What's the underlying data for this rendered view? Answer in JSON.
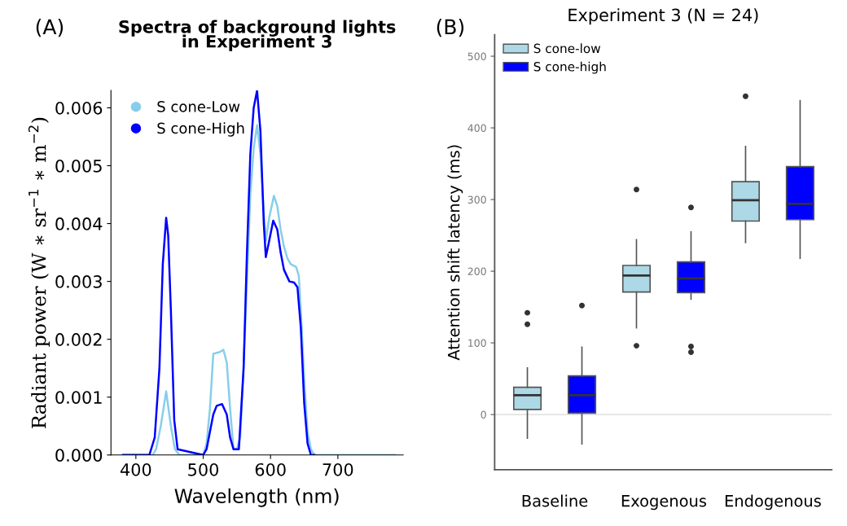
{
  "chart_data": [
    {
      "type": "line",
      "title": "Spectra of background lights\nin Experiment 3",
      "xlabel": "Wavelength (nm)",
      "ylabel": "Radiant power (W ∗ sr$^{−1}$ ∗ m$^{−2}$)",
      "annotations": [
        "(A)"
      ],
      "xlim": [
        363,
        797
      ],
      "ylim": [
        0,
        0.0063
      ],
      "xticks": [
        400,
        500,
        600,
        700
      ],
      "yticks": [
        {
          "value": 0,
          "label": "0.000"
        },
        {
          "value": 0.001,
          "label": "0.001"
        },
        {
          "value": 0.002,
          "label": "0.002"
        },
        {
          "value": 0.003,
          "label": "0.003"
        },
        {
          "value": 0.004,
          "label": "0.004"
        },
        {
          "value": 0.005,
          "label": "0.005"
        },
        {
          "value": 0.006,
          "label": "0.006"
        }
      ],
      "legend": "top left",
      "grid": false,
      "marker": "none",
      "line_style": "solid",
      "series": [
        {
          "name": "S cone-Low",
          "color": "#87ceeb",
          "x": [
            381,
            425,
            430,
            437,
            445,
            452,
            458,
            465,
            500,
            505,
            510,
            515,
            525,
            530,
            535,
            540,
            545,
            550,
            555,
            560,
            565,
            570,
            575,
            580,
            585,
            590,
            593,
            598,
            605,
            610,
            615,
            620,
            625,
            630,
            638,
            642,
            645,
            650,
            655,
            660,
            665,
            685,
            785
          ],
          "values": [
            0,
            0,
            0.0001,
            0.0005,
            0.0011,
            0.0005,
            0.0001,
            0,
            0,
            0.0002,
            0.0008,
            0.00175,
            0.00178,
            0.00182,
            0.0016,
            0.0008,
            0.0001,
            0.0001,
            0.0003,
            0.0015,
            0.003,
            0.0045,
            0.0053,
            0.0057,
            0.0052,
            0.0042,
            0.0037,
            0.0041,
            0.00448,
            0.0043,
            0.0039,
            0.0036,
            0.0034,
            0.0033,
            0.00325,
            0.0031,
            0.0025,
            0.0013,
            0.0004,
            0.0001,
            0,
            0,
            0
          ]
        },
        {
          "name": "S cone-High",
          "color": "#0000ff",
          "x": [
            381,
            420,
            428,
            435,
            440,
            445,
            448,
            452,
            457,
            462,
            500,
            505,
            510,
            515,
            520,
            528,
            535,
            540,
            545,
            553,
            560,
            565,
            570,
            575,
            580,
            585,
            590,
            593,
            598,
            604,
            610,
            615,
            620,
            628,
            635,
            640,
            645,
            650,
            655,
            660,
            665
          ],
          "values": [
            0,
            0,
            0.0003,
            0.0015,
            0.0033,
            0.0041,
            0.0038,
            0.0025,
            0.0006,
            0.0001,
            0,
            0.0001,
            0.0004,
            0.0007,
            0.00085,
            0.00088,
            0.0007,
            0.0003,
            0.0001,
            0.0001,
            0.0015,
            0.0035,
            0.0052,
            0.006,
            0.0063,
            0.0056,
            0.004,
            0.00342,
            0.0037,
            0.00405,
            0.0039,
            0.0035,
            0.0032,
            0.003,
            0.00298,
            0.0029,
            0.0022,
            0.0009,
            0.0002,
            0,
            0
          ]
        }
      ]
    },
    {
      "type": "box",
      "title": "Experiment 3 (N = 24)",
      "ylabel": "Attention shift latency (ms)",
      "annotations": [
        "(B)"
      ],
      "categories": [
        "Baseline",
        "Exogenous",
        "Endogenous"
      ],
      "ylim": [
        -77,
        530
      ],
      "yticks": [
        0,
        100,
        200,
        300,
        400,
        500
      ],
      "legend": "top left",
      "grid": false,
      "ref_lines": [
        {
          "axis": "y",
          "value": 0,
          "color": "#d9d9d9"
        }
      ],
      "series": [
        {
          "name": "S cone-low",
          "color": "#add8e6",
          "boxes": [
            {
              "low": -33,
              "q1": 7,
              "median": 27,
              "q3": 38,
              "high": 65,
              "outliers": [
                142,
                126
              ]
            },
            {
              "low": 121,
              "q1": 171,
              "median": 194,
              "q3": 208,
              "high": 244,
              "outliers": [
                314,
                96
              ]
            },
            {
              "low": 240,
              "q1": 270,
              "median": 299,
              "q3": 325,
              "high": 374,
              "outliers": [
                444
              ]
            }
          ]
        },
        {
          "name": "S cone-high",
          "color": "#0000ff",
          "boxes": [
            {
              "low": -41,
              "q1": 2,
              "median": 27,
              "q3": 54,
              "high": 94,
              "outliers": [
                152
              ]
            },
            {
              "low": 161,
              "q1": 170,
              "median": 190,
              "q3": 213,
              "high": 255,
              "outliers": [
                289,
                95,
                87
              ]
            },
            {
              "low": 218,
              "q1": 272,
              "median": 294,
              "q3": 346,
              "high": 438
            }
          ]
        }
      ]
    }
  ]
}
